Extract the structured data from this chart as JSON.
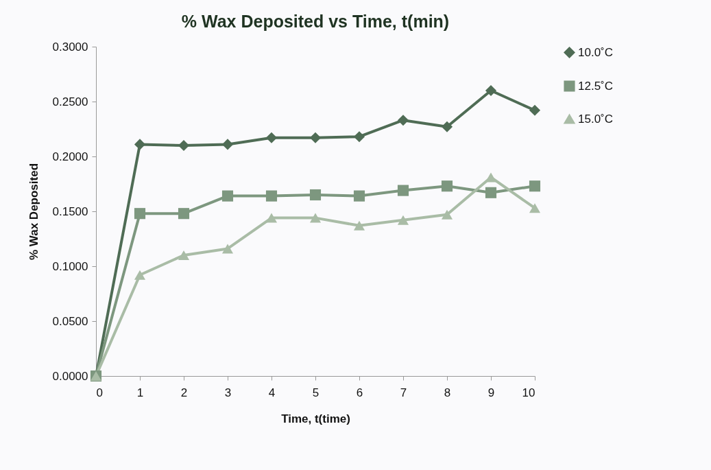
{
  "chart_data": {
    "type": "line",
    "title": "% Wax Deposited vs Time, t(min)",
    "xlabel": "Time, t(time)",
    "ylabel": "% Wax Deposited",
    "x": [
      0,
      1,
      2,
      3,
      4,
      5,
      6,
      7,
      8,
      9,
      10
    ],
    "series": [
      {
        "name": "10.0˚C",
        "color": "#4f6c55",
        "marker": "diamond",
        "values": [
          0,
          0.211,
          0.21,
          0.211,
          0.217,
          0.217,
          0.218,
          0.233,
          0.227,
          0.26,
          0.242
        ]
      },
      {
        "name": "12.5˚C",
        "color": "#7d977f",
        "marker": "square",
        "values": [
          0,
          0.148,
          0.148,
          0.164,
          0.164,
          0.165,
          0.164,
          0.169,
          0.173,
          0.167,
          0.173
        ]
      },
      {
        "name": "15.0˚C",
        "color": "#a9bca6",
        "marker": "triangle",
        "values": [
          0,
          0.092,
          0.11,
          0.116,
          0.144,
          0.144,
          0.137,
          0.142,
          0.147,
          0.181,
          0.153
        ]
      }
    ],
    "xlim": [
      0,
      10
    ],
    "xticks": [
      0,
      1,
      2,
      3,
      4,
      5,
      6,
      7,
      8,
      9,
      10
    ],
    "ylim": [
      0,
      0.3
    ],
    "yticks": [
      {
        "value": 0,
        "label": "0.0000"
      },
      {
        "value": 0.05,
        "label": "0.0500"
      },
      {
        "value": 0.1,
        "label": "0.1000"
      },
      {
        "value": 0.15,
        "label": "0.1500"
      },
      {
        "value": 0.2,
        "label": "0.2000"
      },
      {
        "value": 0.25,
        "label": "0.2500"
      },
      {
        "value": 0.3,
        "label": "0.3000"
      }
    ],
    "grid": false,
    "legend": "right",
    "line_style": "solid"
  }
}
